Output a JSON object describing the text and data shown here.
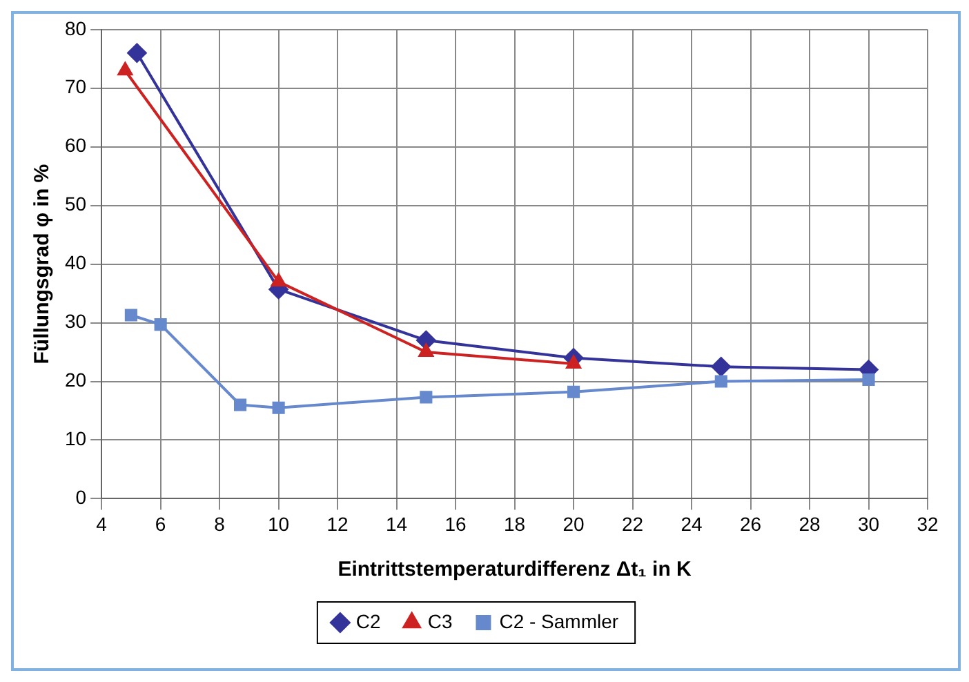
{
  "chart_data": {
    "type": "line",
    "xlabel": "Eintrittstemperaturdifferenz Δt₁ in K",
    "ylabel": "Füllungsgrad φ in %",
    "xlim": [
      4,
      32
    ],
    "xticks": [
      4,
      6,
      8,
      10,
      12,
      14,
      16,
      18,
      20,
      22,
      24,
      26,
      28,
      30,
      32
    ],
    "ylim": [
      0,
      80
    ],
    "yticks": [
      0,
      10,
      20,
      30,
      40,
      50,
      60,
      70,
      80
    ],
    "grid": true,
    "legend": "bottom",
    "line_style": "solid",
    "series": [
      {
        "name": "C2",
        "color": "#333399",
        "marker": "diamond",
        "x": [
          5.2,
          10,
          15,
          20,
          25,
          30
        ],
        "values": [
          76,
          35.7,
          27,
          24,
          22.5,
          22
        ]
      },
      {
        "name": "C3",
        "color": "#cc2222",
        "marker": "triangle",
        "x": [
          4.8,
          10,
          15,
          20
        ],
        "values": [
          73,
          37,
          25,
          23
        ]
      },
      {
        "name": "C2 - Sammler",
        "color": "#6688cc",
        "marker": "square",
        "x": [
          5,
          6,
          8.7,
          10,
          15,
          20,
          25,
          30
        ],
        "values": [
          31.3,
          29.7,
          16,
          15.5,
          17.3,
          18.2,
          20,
          20.3
        ]
      }
    ]
  }
}
